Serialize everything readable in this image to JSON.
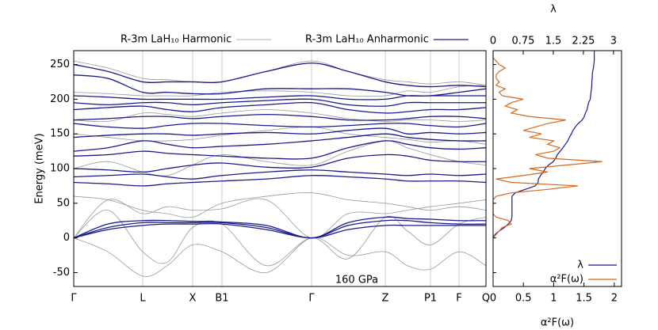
{
  "chart_data": [
    {
      "type": "line",
      "ylabel": "Energy (meV)",
      "annotation": "160 GPa",
      "x": [
        0,
        43,
        87,
        118,
        150,
        187,
        243,
        300,
        346,
        393,
        421,
        450,
        486,
        520
      ],
      "xlim": [
        0,
        520
      ],
      "xticks": [
        {
          "value": 0,
          "label": "Γ"
        },
        {
          "value": 87,
          "label": "L"
        },
        {
          "value": 150,
          "label": "X"
        },
        {
          "value": 187,
          "label": "B1"
        },
        {
          "value": 300,
          "label": "Γ"
        },
        {
          "value": 393,
          "label": "Z"
        },
        {
          "value": 450,
          "label": "P1"
        },
        {
          "value": 486,
          "label": "F"
        },
        {
          "value": 520,
          "label": "Q"
        }
      ],
      "ylim": [
        -70,
        270
      ],
      "yticks": [
        -50,
        0,
        50,
        100,
        150,
        200,
        250
      ],
      "grid_x": true,
      "legend": "top",
      "series": [
        {
          "name": "R-3m LaH₁₀ Harmonic",
          "color": "#999999",
          "bands": [
            [
              0,
              -20,
              -55,
              -40,
              -10,
              -20,
              -50,
              0,
              -25,
              -20,
              -40,
              -45,
              -20,
              -40
            ],
            [
              0,
              40,
              -20,
              -35,
              15,
              20,
              -40,
              0,
              -30,
              30,
              10,
              -10,
              20,
              30
            ],
            [
              0,
              55,
              35,
              45,
              40,
              42,
              55,
              0,
              35,
              35,
              40,
              45,
              50,
              55
            ],
            [
              60,
              55,
              40,
              35,
              30,
              50,
              60,
              65,
              55,
              50,
              45,
              40,
              45,
              40
            ],
            [
              100,
              110,
              95,
              90,
              105,
              120,
              110,
              105,
              125,
              140,
              130,
              120,
              110,
              105
            ],
            [
              150,
              145,
              140,
              140,
              142,
              148,
              155,
              160,
              150,
              145,
              142,
              138,
              140,
              135
            ],
            [
              170,
              168,
              180,
              178,
              175,
              180,
              185,
              180,
              172,
              168,
              170,
              170,
              168,
              170
            ],
            [
              210,
              208,
              205,
              205,
              205,
              210,
              212,
              210,
              205,
              205,
              212,
              210,
              218,
              220
            ],
            [
              255,
              245,
              230,
              228,
              225,
              225,
              240,
              255,
              240,
              228,
              225,
              222,
              225,
              220
            ]
          ]
        },
        {
          "name": "R-3m LaH₁₀ Anharmonic",
          "color": "#1a1a8c",
          "bands": [
            [
              0,
              12,
              18,
              20,
              20,
              20,
              12,
              0,
              12,
              18,
              18,
              18,
              18,
              18
            ],
            [
              0,
              15,
              22,
              22,
              22,
              22,
              15,
              0,
              18,
              25,
              25,
              22,
              20,
              20
            ],
            [
              0,
              20,
              25,
              25,
              24,
              23,
              18,
              0,
              22,
              30,
              28,
              27,
              25,
              25
            ],
            [
              80,
              78,
              75,
              78,
              80,
              82,
              85,
              90,
              88,
              85,
              82,
              82,
              82,
              80
            ],
            [
              88,
              90,
              92,
              88,
              85,
              90,
              95,
              98,
              95,
              92,
              90,
              92,
              90,
              92
            ],
            [
              100,
              98,
              95,
              100,
              105,
              108,
              102,
              102,
              115,
              120,
              118,
              112,
              110,
              110
            ],
            [
              118,
              120,
              125,
              122,
              120,
              118,
              115,
              115,
              130,
              140,
              135,
              130,
              128,
              130
            ],
            [
              125,
              130,
              140,
              135,
              130,
              132,
              135,
              140,
              145,
              150,
              145,
              142,
              140,
              140
            ],
            [
              145,
              148,
              150,
              150,
              148,
              150,
              152,
              150,
              155,
              158,
              150,
              152,
              150,
              152
            ],
            [
              165,
              160,
              158,
              162,
              165,
              165,
              162,
              160,
              162,
              165,
              165,
              162,
              160,
              165
            ],
            [
              170,
              172,
              175,
              175,
              172,
              175,
              178,
              175,
              170,
              170,
              172,
              175,
              175,
              172
            ],
            [
              185,
              188,
              190,
              185,
              182,
              188,
              192,
              195,
              185,
              180,
              182,
              185,
              185,
              188
            ],
            [
              195,
              192,
              195,
              195,
              192,
              195,
              198,
              200,
              192,
              190,
              195,
              195,
              195,
              195
            ],
            [
              205,
              203,
              200,
              200,
              200,
              200,
              203,
              205,
              200,
              200,
              205,
              205,
              210,
              215
            ],
            [
              250,
              240,
              225,
              225,
              225,
              225,
              240,
              252,
              240,
              225,
              220,
              218,
              220,
              218
            ],
            [
              235,
              230,
              210,
              210,
              208,
              208,
              215,
              215,
              215,
              210,
              205,
              205,
              205,
              205
            ]
          ]
        }
      ]
    },
    {
      "type": "line",
      "orientation": "horizontal",
      "y": [
        0,
        5,
        10,
        15,
        20,
        25,
        30,
        35,
        40,
        45,
        50,
        55,
        60,
        65,
        70,
        75,
        80,
        85,
        90,
        95,
        100,
        105,
        110,
        115,
        120,
        125,
        130,
        135,
        140,
        145,
        150,
        155,
        160,
        165,
        170,
        175,
        180,
        185,
        190,
        195,
        200,
        205,
        210,
        215,
        220,
        225,
        230,
        235,
        240,
        245,
        250,
        255,
        260,
        265,
        270
      ],
      "ylim": [
        -70,
        270
      ],
      "xlabel": "α²F(ω)",
      "xlim": [
        0,
        2.12
      ],
      "xticks": [
        0,
        0.5,
        1,
        1.5,
        2
      ],
      "x2label": "λ",
      "x2lim": [
        0,
        3.2
      ],
      "x2ticks": [
        0,
        0.75,
        1.5,
        2.25,
        3
      ],
      "legend": "lower right",
      "series": [
        {
          "name": "λ",
          "color": "#1a1a8c",
          "axis": "x2",
          "values": [
            0,
            0.05,
            0.15,
            0.28,
            0.38,
            0.45,
            0.47,
            0.47,
            0.47,
            0.47,
            0.47,
            0.47,
            0.47,
            0.55,
            0.8,
            1.05,
            1.12,
            1.13,
            1.18,
            1.25,
            1.3,
            1.38,
            1.5,
            1.56,
            1.6,
            1.67,
            1.74,
            1.8,
            1.86,
            1.9,
            1.95,
            1.99,
            2.05,
            2.12,
            2.22,
            2.27,
            2.3,
            2.34,
            2.36,
            2.38,
            2.42,
            2.43,
            2.44,
            2.45,
            2.46,
            2.46,
            2.47,
            2.47,
            2.48,
            2.5,
            2.51,
            2.52,
            2.52,
            2.52,
            2.52
          ]
        },
        {
          "name": "α²F(ω)",
          "color": "#d2691e",
          "values": [
            0,
            0.05,
            0.1,
            0.15,
            0.3,
            0.25,
            0.05,
            0,
            0,
            0,
            0,
            0,
            0.05,
            0.3,
            0.9,
            1.4,
            0.3,
            0.05,
            0.5,
            0.9,
            0.6,
            1.2,
            1.8,
            0.9,
            0.7,
            1.0,
            1.1,
            0.9,
            1.0,
            0.6,
            0.8,
            0.5,
            0.7,
            0.9,
            1.2,
            0.6,
            0.3,
            0.4,
            0.2,
            0.3,
            0.5,
            0.15,
            0.1,
            0.2,
            0.05,
            0.1,
            0.05,
            0.05,
            0.1,
            0.2,
            0.1,
            0.05,
            0,
            0,
            0
          ]
        }
      ]
    }
  ]
}
